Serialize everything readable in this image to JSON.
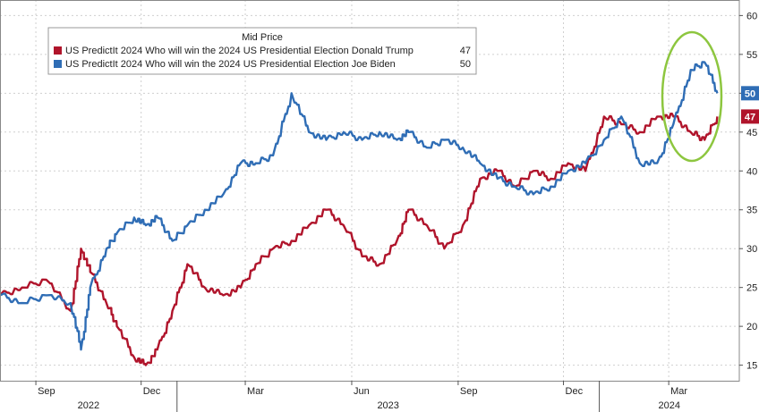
{
  "chart_data": {
    "type": "line",
    "title": "Mid Price",
    "xlabel": "",
    "ylabel": "",
    "ylim": [
      13,
      62
    ],
    "yticks": [
      15,
      20,
      25,
      30,
      35,
      40,
      45,
      50,
      55,
      60
    ],
    "grid": true,
    "legend_position": "top-left",
    "month_ticks": [
      "Sep",
      "Dec",
      "Mar",
      "Jun",
      "Sep",
      "Dec",
      "Mar"
    ],
    "year_labels": [
      "2022",
      "2023",
      "2024"
    ],
    "series": [
      {
        "name": "US PredictIt 2024 Who will win the 2024 US Presidential Election Donald Trump",
        "last_value": "47",
        "color": "#b0142b",
        "x": [
          "2022-08-01",
          "2022-08-20",
          "2022-09-10",
          "2022-10-01",
          "2022-10-10",
          "2022-10-18",
          "2022-11-01",
          "2022-11-10",
          "2022-11-25",
          "2022-12-05",
          "2022-12-15",
          "2022-12-28",
          "2023-01-10",
          "2023-01-25",
          "2023-02-10",
          "2023-02-25",
          "2023-03-10",
          "2023-03-25",
          "2023-04-10",
          "2023-04-25",
          "2023-05-10",
          "2023-05-25",
          "2023-06-10",
          "2023-06-25",
          "2023-07-10",
          "2023-07-20",
          "2023-08-05",
          "2023-08-20",
          "2023-09-05",
          "2023-09-20",
          "2023-10-05",
          "2023-10-20",
          "2023-11-05",
          "2023-11-20",
          "2023-12-05",
          "2023-12-20",
          "2024-01-05",
          "2024-01-20",
          "2024-02-05",
          "2024-02-20",
          "2024-03-05",
          "2024-03-20",
          "2024-04-01",
          "2024-04-12"
        ],
        "y": [
          24,
          25,
          26,
          22,
          30,
          27,
          23,
          20,
          16,
          15,
          17,
          22,
          28,
          25,
          24,
          25,
          28,
          30,
          31,
          33,
          35,
          33,
          29,
          28,
          31,
          35,
          33,
          30,
          33,
          39,
          40,
          38,
          40,
          39,
          41,
          40,
          47,
          46,
          45,
          47,
          47,
          45,
          44,
          47
        ]
      },
      {
        "name": "US PredictIt 2024 Who will win the 2024 US Presidential Election Joe Biden",
        "last_value": "50",
        "color": "#2f6db5",
        "x": [
          "2022-08-01",
          "2022-08-20",
          "2022-09-10",
          "2022-10-01",
          "2022-10-10",
          "2022-10-18",
          "2022-11-01",
          "2022-11-10",
          "2022-11-25",
          "2022-12-05",
          "2022-12-15",
          "2022-12-28",
          "2023-01-10",
          "2023-01-25",
          "2023-02-10",
          "2023-02-25",
          "2023-03-10",
          "2023-03-25",
          "2023-04-10",
          "2023-04-25",
          "2023-05-10",
          "2023-05-25",
          "2023-06-10",
          "2023-06-25",
          "2023-07-10",
          "2023-07-20",
          "2023-08-05",
          "2023-08-20",
          "2023-09-05",
          "2023-09-20",
          "2023-10-05",
          "2023-10-20",
          "2023-11-05",
          "2023-11-20",
          "2023-12-05",
          "2023-12-20",
          "2024-01-05",
          "2024-01-20",
          "2024-02-05",
          "2024-02-20",
          "2024-03-05",
          "2024-03-20",
          "2024-04-01",
          "2024-04-12"
        ],
        "y": [
          24,
          23,
          24,
          23,
          17,
          25,
          30,
          32,
          34,
          33,
          34,
          31,
          33,
          35,
          37,
          41,
          41,
          42,
          50,
          45,
          44,
          45,
          44,
          45,
          44,
          45,
          43,
          44,
          43,
          41,
          39,
          38,
          37,
          38,
          40,
          41,
          44,
          47,
          41,
          41,
          46,
          53,
          54,
          50
        ]
      }
    ]
  }
}
